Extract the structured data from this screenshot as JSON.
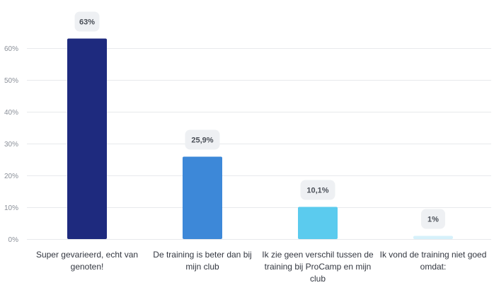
{
  "chart_data": {
    "type": "bar",
    "categories": [
      "Super gevarieerd, echt van genoten!",
      "De training is beter dan bij mijn club",
      "Ik zie geen verschil tussen de training bij ProCamp en mijn club",
      "Ik vond de training niet goed omdat:"
    ],
    "values": [
      63,
      25.9,
      10.1,
      1
    ],
    "data_labels": [
      "63%",
      "25,9%",
      "10,1%",
      "1%"
    ],
    "bar_colors": [
      "#1e2a7e",
      "#3d88d8",
      "#5bcbee",
      "#d6f1fb"
    ],
    "yticks": [
      0,
      10,
      20,
      30,
      40,
      50,
      60
    ],
    "ytick_labels": [
      "0%",
      "10%",
      "20%",
      "30%",
      "40%",
      "50%",
      "60%"
    ],
    "ylim": [
      0,
      60
    ],
    "title": "",
    "xlabel": "",
    "ylabel": "",
    "grid": true,
    "legend": "none"
  }
}
